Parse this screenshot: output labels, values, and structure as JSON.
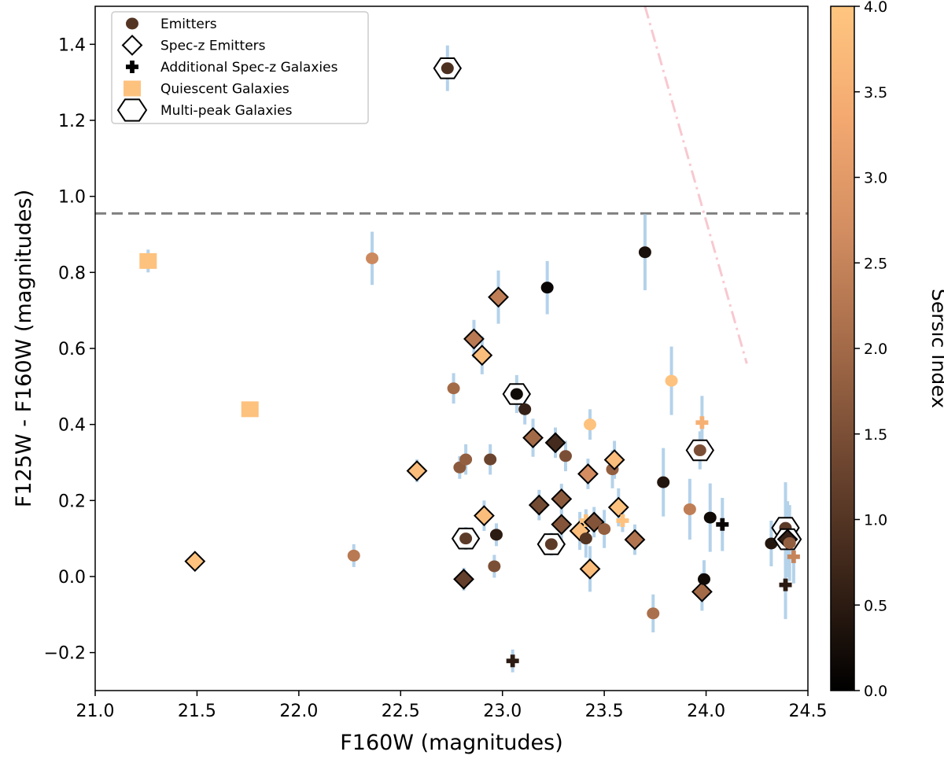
{
  "chart_data": {
    "type": "scatter",
    "xlabel": "F160W (magnitudes)",
    "ylabel": "F125W - F160W (magnitudes)",
    "xlim": [
      21.0,
      24.5
    ],
    "ylim": [
      -0.3,
      1.5
    ],
    "xticks": [
      21.0,
      21.5,
      22.0,
      22.5,
      23.0,
      23.5,
      24.0,
      24.5
    ],
    "xtick_labels": [
      "21.0",
      "21.5",
      "22.0",
      "22.5",
      "23.0",
      "23.5",
      "24.0",
      "24.5"
    ],
    "yticks": [
      -0.2,
      0.0,
      0.2,
      0.4,
      0.6,
      0.8,
      1.0,
      1.2,
      1.4
    ],
    "ytick_labels": [
      "−0.2",
      "0.0",
      "0.2",
      "0.4",
      "0.6",
      "0.8",
      "1.0",
      "1.2",
      "1.4"
    ],
    "grid": false,
    "legend_position": "top-left",
    "colorbar": {
      "label": "Sersic Index",
      "range": [
        0.0,
        4.0
      ],
      "ticks": [
        0.0,
        0.5,
        1.0,
        1.5,
        2.0,
        2.5,
        3.0,
        3.5,
        4.0
      ],
      "tick_labels": [
        "0.0",
        "0.5",
        "1.0",
        "1.5",
        "2.0",
        "2.5",
        "3.0",
        "3.5",
        "4.0"
      ],
      "colors": [
        "#000000",
        "#3a2418",
        "#6e4630",
        "#a36a48",
        "#d18c60",
        "#f3a870",
        "#ffc680"
      ]
    },
    "colors": {
      "errorbar": "#b4d2ea",
      "threshold_line": "#808080",
      "limit_line": "#f8c8d0"
    },
    "legend": [
      {
        "label": "Emitters",
        "marker": "circle"
      },
      {
        "label": "Spec-z Emitters",
        "marker": "diamond"
      },
      {
        "label": "Additional Spec-z Galaxies",
        "marker": "plus"
      },
      {
        "label": "Quiescent Galaxies",
        "marker": "square"
      },
      {
        "label": "Multi-peak Galaxies",
        "marker": "hexagon"
      }
    ],
    "reference_lines": [
      {
        "name": "color-threshold",
        "style": "dashed",
        "y": 0.955
      },
      {
        "name": "detection-limit",
        "style": "dashdot",
        "points": [
          [
            23.7,
            1.5
          ],
          [
            24.2,
            0.56
          ]
        ]
      }
    ],
    "points": [
      {
        "x": 21.26,
        "y": 0.83,
        "n": 3.9,
        "marker": "square",
        "err": 0.03
      },
      {
        "x": 21.76,
        "y": 0.44,
        "n": 3.9,
        "marker": "square",
        "err": 0.02
      },
      {
        "x": 21.49,
        "y": 0.04,
        "n": 3.9,
        "marker": "diamond",
        "err": 0.02
      },
      {
        "x": 22.27,
        "y": 0.055,
        "n": 2.3,
        "marker": "circle",
        "err": 0.03
      },
      {
        "x": 22.36,
        "y": 0.837,
        "n": 2.6,
        "marker": "circle",
        "err": 0.07
      },
      {
        "x": 22.58,
        "y": 0.278,
        "n": 3.8,
        "marker": "diamond",
        "err": 0.03
      },
      {
        "x": 22.73,
        "y": 1.337,
        "n": 0.9,
        "marker": "circle",
        "hex": true,
        "err": 0.06
      },
      {
        "x": 22.76,
        "y": 0.495,
        "n": 2.0,
        "marker": "circle",
        "err": 0.04
      },
      {
        "x": 22.79,
        "y": 0.287,
        "n": 1.7,
        "marker": "circle",
        "err": 0.03
      },
      {
        "x": 22.82,
        "y": 0.308,
        "n": 1.8,
        "marker": "circle",
        "err": 0.04
      },
      {
        "x": 22.82,
        "y": 0.1,
        "n": 1.1,
        "marker": "circle",
        "hex": true,
        "err": 0.03
      },
      {
        "x": 22.81,
        "y": -0.007,
        "n": 1.2,
        "marker": "diamond",
        "err": 0.03
      },
      {
        "x": 22.86,
        "y": 0.625,
        "n": 2.3,
        "marker": "diamond",
        "err": 0.05
      },
      {
        "x": 22.9,
        "y": 0.582,
        "n": 3.8,
        "marker": "diamond",
        "err": 0.05
      },
      {
        "x": 22.91,
        "y": 0.16,
        "n": 3.8,
        "marker": "diamond",
        "err": 0.04
      },
      {
        "x": 22.94,
        "y": 0.308,
        "n": 1.3,
        "marker": "circle",
        "err": 0.04
      },
      {
        "x": 22.97,
        "y": 0.11,
        "n": 0.5,
        "marker": "circle",
        "err": 0.03
      },
      {
        "x": 22.96,
        "y": 0.027,
        "n": 1.5,
        "marker": "circle",
        "err": 0.03
      },
      {
        "x": 22.98,
        "y": 0.735,
        "n": 2.4,
        "marker": "diamond",
        "err": 0.07
      },
      {
        "x": 23.05,
        "y": -0.222,
        "n": 0.5,
        "marker": "plus",
        "err": 0.03
      },
      {
        "x": 23.07,
        "y": 0.48,
        "n": 0.2,
        "marker": "circle",
        "hex": true,
        "err": 0.05
      },
      {
        "x": 23.11,
        "y": 0.44,
        "n": 0.6,
        "marker": "circle",
        "err": 0.04
      },
      {
        "x": 23.15,
        "y": 0.365,
        "n": 2.0,
        "marker": "diamond",
        "err": 0.05
      },
      {
        "x": 23.18,
        "y": 0.188,
        "n": 1.4,
        "marker": "diamond",
        "err": 0.04
      },
      {
        "x": 23.22,
        "y": 0.76,
        "n": 0.1,
        "marker": "circle",
        "err": 0.07
      },
      {
        "x": 23.24,
        "y": 0.085,
        "n": 1.1,
        "marker": "circle",
        "hex": true,
        "err": 0.03
      },
      {
        "x": 23.26,
        "y": 0.352,
        "n": 0.8,
        "marker": "diamond",
        "err": 0.04
      },
      {
        "x": 23.29,
        "y": 0.204,
        "n": 1.7,
        "marker": "diamond",
        "err": 0.04
      },
      {
        "x": 23.29,
        "y": 0.137,
        "n": 1.6,
        "marker": "diamond",
        "err": 0.05
      },
      {
        "x": 23.31,
        "y": 0.317,
        "n": 1.5,
        "marker": "circle",
        "err": 0.04
      },
      {
        "x": 23.38,
        "y": 0.12,
        "n": 3.8,
        "marker": "diamond",
        "err": 0.05
      },
      {
        "x": 23.41,
        "y": 0.1,
        "n": 1.0,
        "marker": "circle",
        "err": 0.05
      },
      {
        "x": 23.41,
        "y": 0.147,
        "n": 3.9,
        "marker": "plus",
        "err": 0.03
      },
      {
        "x": 23.42,
        "y": 0.27,
        "n": 2.7,
        "marker": "diamond",
        "err": 0.04
      },
      {
        "x": 23.43,
        "y": 0.02,
        "n": 3.8,
        "marker": "diamond",
        "err": 0.06
      },
      {
        "x": 23.43,
        "y": 0.4,
        "n": 3.9,
        "marker": "circle",
        "err": 0.04
      },
      {
        "x": 23.45,
        "y": 0.143,
        "n": 1.6,
        "marker": "diamond",
        "err": 0.04
      },
      {
        "x": 23.5,
        "y": 0.125,
        "n": 1.8,
        "marker": "circle",
        "err": 0.05
      },
      {
        "x": 23.54,
        "y": 0.282,
        "n": 1.8,
        "marker": "circle",
        "err": 0.05
      },
      {
        "x": 23.55,
        "y": 0.307,
        "n": 3.8,
        "marker": "diamond",
        "err": 0.05
      },
      {
        "x": 23.57,
        "y": 0.182,
        "n": 3.9,
        "marker": "diamond",
        "err": 0.05
      },
      {
        "x": 23.59,
        "y": 0.147,
        "n": 3.9,
        "marker": "plus",
        "err": 0.03
      },
      {
        "x": 23.65,
        "y": 0.097,
        "n": 2.2,
        "marker": "diamond",
        "err": 0.04
      },
      {
        "x": 23.7,
        "y": 0.853,
        "n": 0.3,
        "marker": "circle",
        "err": 0.1
      },
      {
        "x": 23.74,
        "y": -0.097,
        "n": 2.1,
        "marker": "circle",
        "err": 0.05
      },
      {
        "x": 23.79,
        "y": 0.248,
        "n": 0.4,
        "marker": "circle",
        "err": 0.09
      },
      {
        "x": 23.83,
        "y": 0.515,
        "n": 3.9,
        "marker": "circle",
        "err": 0.09
      },
      {
        "x": 23.92,
        "y": 0.177,
        "n": 2.4,
        "marker": "circle",
        "err": 0.08
      },
      {
        "x": 23.97,
        "y": 0.332,
        "n": 1.5,
        "marker": "circle",
        "hex": true,
        "err": 0.05
      },
      {
        "x": 23.98,
        "y": 0.405,
        "n": 3.5,
        "marker": "plus",
        "err": 0.07
      },
      {
        "x": 23.98,
        "y": -0.04,
        "n": 2.0,
        "marker": "diamond",
        "err": 0.05
      },
      {
        "x": 23.99,
        "y": -0.007,
        "n": 0.2,
        "marker": "circle",
        "err": 0.05
      },
      {
        "x": 24.02,
        "y": 0.155,
        "n": 0.2,
        "marker": "circle",
        "err": 0.09
      },
      {
        "x": 24.08,
        "y": 0.137,
        "n": 0.1,
        "marker": "plus",
        "err": 0.07
      },
      {
        "x": 24.32,
        "y": 0.087,
        "n": 0.4,
        "marker": "circle",
        "err": 0.06
      },
      {
        "x": 24.39,
        "y": 0.128,
        "n": 1.1,
        "marker": "circle",
        "hex": true,
        "err": 0.12
      },
      {
        "x": 24.4,
        "y": 0.098,
        "n": 0.6,
        "marker": "diamond",
        "hex": true,
        "err": 0.1
      },
      {
        "x": 24.39,
        "y": -0.022,
        "n": 0.5,
        "marker": "plus",
        "err": 0.09
      },
      {
        "x": 24.41,
        "y": 0.088,
        "n": 1.8,
        "marker": "circle",
        "err": 0.1
      },
      {
        "x": 24.43,
        "y": 0.052,
        "n": 2.5,
        "marker": "plus",
        "err": 0.07
      }
    ]
  }
}
